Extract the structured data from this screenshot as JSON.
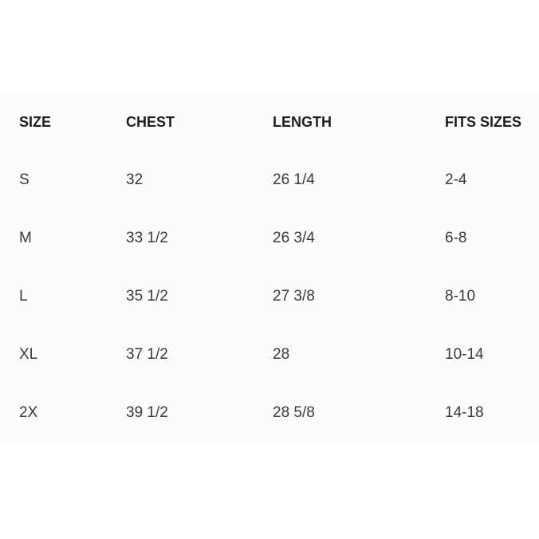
{
  "table": {
    "header": [
      "SIZE",
      "CHEST",
      "LENGTH",
      "FITS SIZES"
    ],
    "rows": [
      [
        "S",
        "32",
        "26 1/4",
        "2-4"
      ],
      [
        "M",
        "33 1/2",
        "26 3/4",
        "6-8"
      ],
      [
        "L",
        "35 1/2",
        "27 3/8",
        "8-10"
      ],
      [
        "XL",
        "37 1/2",
        "28",
        "10-14"
      ],
      [
        "2X",
        "39 1/2",
        "28 5/8",
        "14-18"
      ]
    ]
  }
}
